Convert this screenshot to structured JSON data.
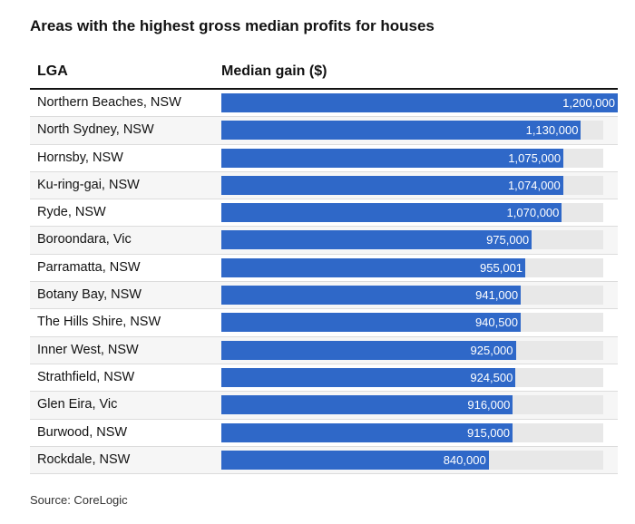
{
  "title": "Areas with the highest gross median profits for houses",
  "source": "Source: CoreLogic",
  "chart_data": {
    "type": "bar",
    "orientation": "horizontal",
    "title": "Areas with the highest gross median profits for houses",
    "columns": [
      "LGA",
      "Median gain ($)"
    ],
    "categories": [
      "Northern Beaches, NSW",
      "North Sydney, NSW",
      "Hornsby, NSW",
      "Ku-ring-gai, NSW",
      "Ryde, NSW",
      "Boroondara, Vic",
      "Parramatta, NSW",
      "Botany Bay, NSW",
      "The Hills Shire, NSW",
      "Inner West, NSW",
      "Strathfield, NSW",
      "Glen Eira, Vic",
      "Burwood, NSW",
      "Rockdale, NSW"
    ],
    "values": [
      1200000,
      1130000,
      1075000,
      1074000,
      1070000,
      975000,
      955001,
      941000,
      940500,
      925000,
      924500,
      916000,
      915000,
      840000
    ],
    "labels": [
      "1,200,000",
      "1,130,000",
      "1,075,000",
      "1,074,000",
      "1,070,000",
      "975,000",
      "955,001",
      "941,000",
      "940,500",
      "925,000",
      "924,500",
      "916,000",
      "915,000",
      "840,000"
    ],
    "xlim": [
      0,
      1200000
    ],
    "bar_color": "#2f68c8",
    "track_color": "#e8e8e8",
    "source": "Source: CoreLogic"
  }
}
